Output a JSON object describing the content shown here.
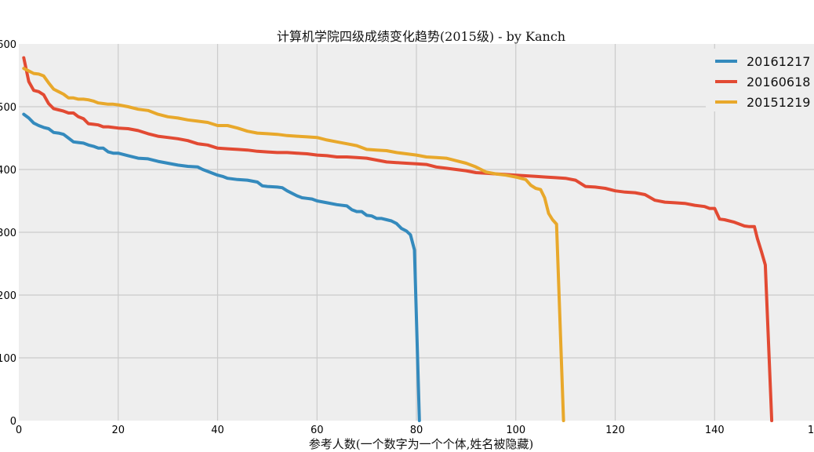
{
  "chart_data": {
    "type": "line",
    "title": "计算机学院四级成绩变化趋势(2015级) - by Kanch",
    "xlabel": "参考人数(一个数字为一个个体,姓名被隐藏)",
    "ylabel": "",
    "xlim": [
      0,
      160
    ],
    "ylim": [
      0,
      600
    ],
    "x_ticks": [
      "0",
      "20",
      "40",
      "60",
      "80",
      "100",
      "120",
      "140",
      "1"
    ],
    "y_ticks": [
      "0",
      "100",
      "200",
      "300",
      "400",
      "500",
      "600"
    ],
    "grid": true,
    "legend_position": "top-right",
    "series": [
      {
        "name": "20161217",
        "color": "#348ABD",
        "points": [
          [
            1,
            488
          ],
          [
            2,
            482
          ],
          [
            3,
            474
          ],
          [
            4,
            470
          ],
          [
            5,
            467
          ],
          [
            6,
            465
          ],
          [
            7,
            459
          ],
          [
            8,
            458
          ],
          [
            9,
            456
          ],
          [
            10,
            450
          ],
          [
            11,
            444
          ],
          [
            12,
            443
          ],
          [
            13,
            442
          ],
          [
            14,
            439
          ],
          [
            15,
            437
          ],
          [
            16,
            434
          ],
          [
            17,
            434
          ],
          [
            18,
            428
          ],
          [
            19,
            426
          ],
          [
            20,
            426
          ],
          [
            22,
            422
          ],
          [
            24,
            418
          ],
          [
            26,
            417
          ],
          [
            28,
            413
          ],
          [
            30,
            410
          ],
          [
            32,
            407
          ],
          [
            34,
            405
          ],
          [
            36,
            404
          ],
          [
            37,
            400
          ],
          [
            38,
            397
          ],
          [
            40,
            391
          ],
          [
            41,
            389
          ],
          [
            42,
            386
          ],
          [
            44,
            384
          ],
          [
            46,
            383
          ],
          [
            48,
            380
          ],
          [
            49,
            374
          ],
          [
            50,
            373
          ],
          [
            52,
            372
          ],
          [
            53,
            371
          ],
          [
            54,
            366
          ],
          [
            55,
            362
          ],
          [
            56,
            358
          ],
          [
            57,
            355
          ],
          [
            58,
            354
          ],
          [
            59,
            353
          ],
          [
            60,
            350
          ],
          [
            62,
            347
          ],
          [
            64,
            344
          ],
          [
            66,
            342
          ],
          [
            67,
            336
          ],
          [
            68,
            333
          ],
          [
            69,
            333
          ],
          [
            70,
            327
          ],
          [
            71,
            326
          ],
          [
            72,
            322
          ],
          [
            73,
            322
          ],
          [
            74,
            320
          ],
          [
            75,
            318
          ],
          [
            76,
            314
          ],
          [
            77,
            306
          ],
          [
            78,
            302
          ],
          [
            78.8,
            296
          ],
          [
            79.6,
            272
          ],
          [
            80.6,
            0
          ]
        ]
      },
      {
        "name": "20160618",
        "color": "#E24A33",
        "points": [
          [
            1,
            578
          ],
          [
            2,
            540
          ],
          [
            3,
            526
          ],
          [
            4,
            524
          ],
          [
            5,
            519
          ],
          [
            6,
            505
          ],
          [
            7,
            497
          ],
          [
            8,
            495
          ],
          [
            9,
            493
          ],
          [
            10,
            490
          ],
          [
            11,
            490
          ],
          [
            12,
            484
          ],
          [
            13,
            481
          ],
          [
            14,
            473
          ],
          [
            15,
            472
          ],
          [
            16,
            471
          ],
          [
            17,
            468
          ],
          [
            18,
            468
          ],
          [
            20,
            466
          ],
          [
            22,
            465
          ],
          [
            24,
            462
          ],
          [
            26,
            457
          ],
          [
            28,
            453
          ],
          [
            30,
            451
          ],
          [
            32,
            449
          ],
          [
            34,
            446
          ],
          [
            36,
            441
          ],
          [
            38,
            439
          ],
          [
            40,
            434
          ],
          [
            42,
            433
          ],
          [
            44,
            432
          ],
          [
            46,
            431
          ],
          [
            48,
            429
          ],
          [
            50,
            428
          ],
          [
            52,
            427
          ],
          [
            54,
            427
          ],
          [
            56,
            426
          ],
          [
            58,
            425
          ],
          [
            60,
            423
          ],
          [
            62,
            422
          ],
          [
            64,
            420
          ],
          [
            66,
            420
          ],
          [
            68,
            419
          ],
          [
            70,
            418
          ],
          [
            72,
            415
          ],
          [
            74,
            412
          ],
          [
            76,
            411
          ],
          [
            78,
            410
          ],
          [
            80,
            409
          ],
          [
            82,
            408
          ],
          [
            84,
            404
          ],
          [
            86,
            402
          ],
          [
            88,
            400
          ],
          [
            90,
            398
          ],
          [
            92,
            395
          ],
          [
            94,
            394
          ],
          [
            96,
            393
          ],
          [
            98,
            392
          ],
          [
            100,
            391
          ],
          [
            102,
            390
          ],
          [
            104,
            389
          ],
          [
            106,
            388
          ],
          [
            108,
            387
          ],
          [
            110,
            386
          ],
          [
            112,
            383
          ],
          [
            114,
            373
          ],
          [
            116,
            372
          ],
          [
            118,
            370
          ],
          [
            120,
            366
          ],
          [
            122,
            364
          ],
          [
            124,
            363
          ],
          [
            126,
            360
          ],
          [
            128,
            351
          ],
          [
            130,
            348
          ],
          [
            132,
            347
          ],
          [
            134,
            346
          ],
          [
            136,
            343
          ],
          [
            138,
            341
          ],
          [
            139,
            338
          ],
          [
            140,
            338
          ],
          [
            141,
            321
          ],
          [
            142,
            320
          ],
          [
            144,
            316
          ],
          [
            146,
            310
          ],
          [
            147,
            309
          ],
          [
            148,
            309
          ],
          [
            148.6,
            290
          ],
          [
            149.4,
            270
          ],
          [
            150.2,
            248
          ],
          [
            151.5,
            0
          ]
        ]
      },
      {
        "name": "20151219",
        "color": "#E8A82B",
        "points": [
          [
            1,
            561
          ],
          [
            2,
            557
          ],
          [
            3,
            553
          ],
          [
            4,
            552
          ],
          [
            5,
            549
          ],
          [
            6,
            538
          ],
          [
            7,
            528
          ],
          [
            8,
            524
          ],
          [
            9,
            520
          ],
          [
            10,
            514
          ],
          [
            11,
            514
          ],
          [
            12,
            512
          ],
          [
            13,
            512
          ],
          [
            14,
            511
          ],
          [
            15,
            509
          ],
          [
            16,
            506
          ],
          [
            17,
            505
          ],
          [
            18,
            504
          ],
          [
            19,
            504
          ],
          [
            20,
            503
          ],
          [
            22,
            500
          ],
          [
            24,
            496
          ],
          [
            26,
            494
          ],
          [
            28,
            488
          ],
          [
            30,
            484
          ],
          [
            32,
            482
          ],
          [
            34,
            479
          ],
          [
            36,
            477
          ],
          [
            38,
            475
          ],
          [
            40,
            470
          ],
          [
            42,
            470
          ],
          [
            44,
            466
          ],
          [
            46,
            461
          ],
          [
            48,
            458
          ],
          [
            50,
            457
          ],
          [
            52,
            456
          ],
          [
            54,
            454
          ],
          [
            56,
            453
          ],
          [
            58,
            452
          ],
          [
            60,
            451
          ],
          [
            62,
            447
          ],
          [
            64,
            444
          ],
          [
            66,
            441
          ],
          [
            68,
            438
          ],
          [
            70,
            432
          ],
          [
            72,
            431
          ],
          [
            74,
            430
          ],
          [
            76,
            427
          ],
          [
            78,
            425
          ],
          [
            80,
            423
          ],
          [
            82,
            420
          ],
          [
            84,
            419
          ],
          [
            86,
            418
          ],
          [
            88,
            414
          ],
          [
            90,
            410
          ],
          [
            92,
            404
          ],
          [
            93,
            400
          ],
          [
            94,
            396
          ],
          [
            96,
            393
          ],
          [
            98,
            391
          ],
          [
            100,
            388
          ],
          [
            102,
            384
          ],
          [
            103,
            375
          ],
          [
            104,
            370
          ],
          [
            105,
            368
          ],
          [
            105.8,
            355
          ],
          [
            106.6,
            330
          ],
          [
            107.4,
            320
          ],
          [
            108.2,
            313
          ],
          [
            109.6,
            0
          ]
        ]
      }
    ]
  }
}
